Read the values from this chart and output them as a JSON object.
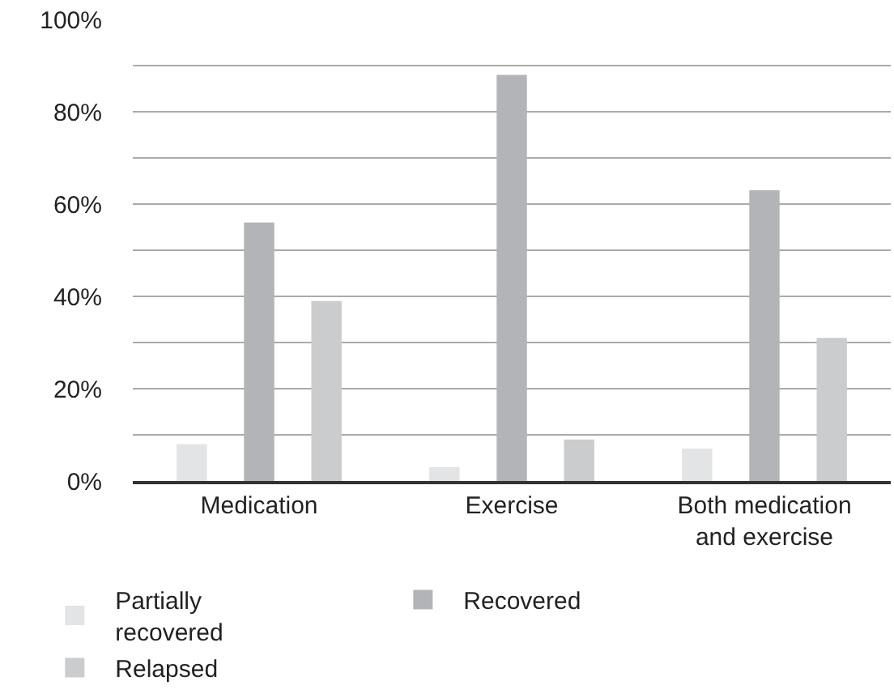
{
  "chart_data": {
    "type": "bar",
    "categories": [
      "Medication",
      "Exercise",
      "Both medication\nand exercise"
    ],
    "series": [
      {
        "name": "Partially\nrecovered",
        "color": "#e3e4e5",
        "values": [
          8,
          3,
          7
        ]
      },
      {
        "name": "Recovered",
        "color": "#b3b4b7",
        "values": [
          56,
          88,
          63
        ]
      },
      {
        "name": "Relapsed",
        "color": "#cbcccd",
        "values": [
          39,
          9,
          31
        ]
      }
    ],
    "ylim": [
      0,
      100
    ],
    "yticks": [
      {
        "value": 0,
        "label": "0%"
      },
      {
        "value": 10,
        "label": null
      },
      {
        "value": 20,
        "label": "20%"
      },
      {
        "value": 30,
        "label": null
      },
      {
        "value": 40,
        "label": "40%"
      },
      {
        "value": 50,
        "label": null
      },
      {
        "value": 60,
        "label": "60%"
      },
      {
        "value": 70,
        "label": null
      },
      {
        "value": 80,
        "label": "80%"
      },
      {
        "value": 90,
        "label": null
      },
      {
        "value": 100,
        "label": "100%"
      }
    ],
    "grid": "y",
    "legend": "bottom"
  }
}
